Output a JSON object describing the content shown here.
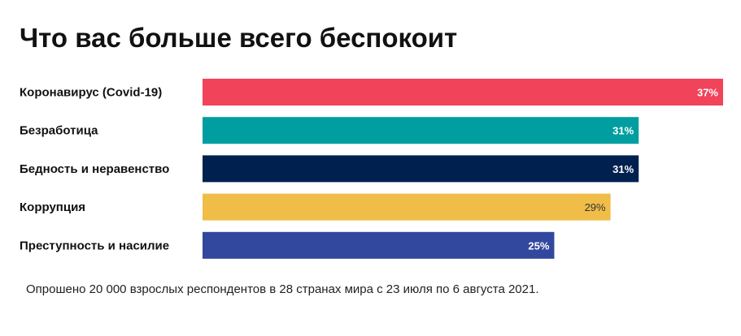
{
  "chart_data": {
    "type": "bar",
    "orientation": "horizontal",
    "title": "Что вас больше всего беспокоит",
    "categories": [
      "Коронавирус (Covid-19)",
      "Безработица",
      "Бедность и неравенство",
      "Коррупция",
      "Преступность и насилие"
    ],
    "values": [
      37,
      31,
      31,
      29,
      25
    ],
    "value_labels": [
      "37%",
      "31%",
      "31%",
      "29%",
      "25%"
    ],
    "colors": [
      "#f1435a",
      "#009ea0",
      "#00214f",
      "#f0bd49",
      "#32489e"
    ],
    "label_colors": [
      "#ffffff",
      "#ffffff",
      "#ffffff",
      "#333333",
      "#ffffff"
    ],
    "xlim": [
      0,
      37
    ],
    "grid": false,
    "legend": "none"
  },
  "footnote": "Опрошено 20 000 взрослых респондентов в 28 странах мира с 23 июля по 6 августа 2021."
}
